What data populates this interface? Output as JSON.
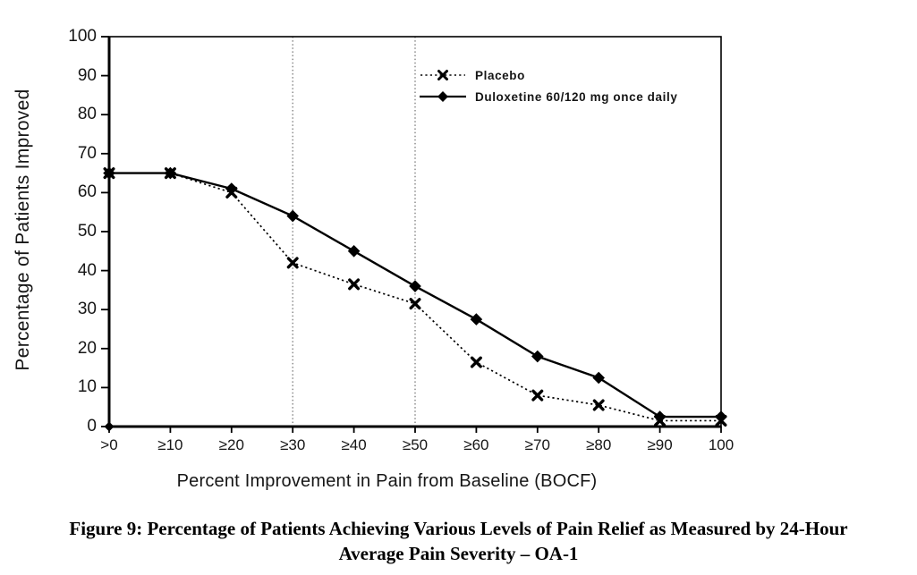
{
  "chart_data": {
    "type": "line",
    "title": "",
    "xlabel": "Percent Improvement in Pain from Baseline (BOCF)",
    "ylabel": "Percentage of Patients Improved",
    "categories": [
      ">0",
      "≥10",
      "≥20",
      "≥30",
      "≥40",
      "≥50",
      "≥60",
      "≥70",
      "≥80",
      "≥90",
      "100"
    ],
    "yticks": [
      "0",
      "10",
      "20",
      "30",
      "40",
      "50",
      "60",
      "70",
      "80",
      "90",
      "100"
    ],
    "ylim": [
      0,
      100
    ],
    "grid": false,
    "reference_line_category_indices": [
      3,
      5
    ],
    "legend_position": "inside-top-right",
    "series": [
      {
        "name": "Placebo",
        "slug": "placebo",
        "marker": "x",
        "line_style": "dotted",
        "color": "#000000",
        "values": [
          65,
          65,
          60,
          42,
          36.5,
          31.5,
          16.5,
          8,
          5.5,
          1.5,
          1.5
        ]
      },
      {
        "name": "Duloxetine 60/120 mg once daily",
        "slug": "duloxetine",
        "marker": "diamond",
        "line_style": "solid",
        "color": "#000000",
        "values": [
          65,
          65,
          61,
          54,
          45,
          36,
          27.5,
          18,
          12.5,
          2.5,
          2.5
        ]
      }
    ]
  },
  "caption": {
    "line1": "Figure 9: Percentage of Patients Achieving Various Levels of Pain Relief as Measured by 24-Hour",
    "line2": "Average Pain Severity – OA-1"
  },
  "colors": {
    "ink": "#000000",
    "reference_line": "#7a7a7a",
    "background": "#ffffff"
  }
}
